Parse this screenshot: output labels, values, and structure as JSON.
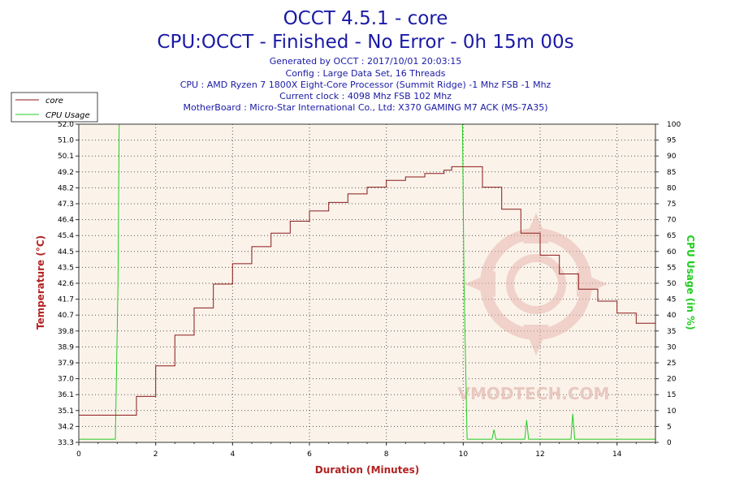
{
  "header": {
    "title1": "OCCT 4.5.1 - core",
    "title2": "CPU:OCCT - Finished - No Error - 0h 15m 00s",
    "info": [
      "Generated by OCCT : 2017/10/01 20:03:15",
      "Config : Large Data Set, 16 Threads",
      "CPU : AMD Ryzen 7 1800X Eight-Core Processor (Summit Ridge) -1 Mhz FSB -1 Mhz",
      "Current clock : 4098 Mhz FSB 102 Mhz",
      "MotherBoard : Micro-Star International Co., Ltd: X370 GAMING M7 ACK (MS-7A35)"
    ]
  },
  "watermark": "VMODTECH.COM",
  "colors": {
    "core": "#8b1a1a",
    "cpu_usage": "#22cc22",
    "plot_bg": "#fbf3ea",
    "title": "#1a1aa6"
  },
  "chart_data": {
    "type": "line",
    "xlabel": "Duration (Minutes)",
    "ylabel": "Temperature (°C)",
    "y2label": "CPU Usage (in %)",
    "xlim": [
      0,
      15
    ],
    "ylim": [
      33.3,
      52.0
    ],
    "y2lim": [
      0,
      100
    ],
    "x_ticks": [
      "0",
      "2",
      "4",
      "6",
      "8",
      "10",
      "12",
      "14"
    ],
    "y_ticks": [
      "33.3",
      "34.2",
      "35.1",
      "36.1",
      "37.0",
      "37.9",
      "38.9",
      "39.8",
      "40.7",
      "41.7",
      "42.6",
      "43.5",
      "44.5",
      "45.4",
      "46.4",
      "47.3",
      "48.2",
      "49.2",
      "50.1",
      "51.0",
      "52.0"
    ],
    "y2_ticks": [
      "0",
      "5",
      "10",
      "15",
      "20",
      "25",
      "30",
      "35",
      "40",
      "45",
      "50",
      "55",
      "60",
      "65",
      "70",
      "75",
      "80",
      "85",
      "90",
      "95",
      "100"
    ],
    "grid": true,
    "legend_position": "top-left",
    "series": [
      {
        "name": "core",
        "axis": "left",
        "x": [
          0,
          1.2,
          1.5,
          2.0,
          2.5,
          3.0,
          3.5,
          4.0,
          4.5,
          5.0,
          5.5,
          6.0,
          6.5,
          7.0,
          7.5,
          8.0,
          8.5,
          9.0,
          9.5,
          9.7,
          10.0,
          10.5,
          11.0,
          11.5,
          12.0,
          12.5,
          13.0,
          13.5,
          14.0,
          14.5,
          15.0
        ],
        "y": [
          34.9,
          34.9,
          36.0,
          37.8,
          39.6,
          41.2,
          42.6,
          43.8,
          44.8,
          45.6,
          46.3,
          46.9,
          47.4,
          47.9,
          48.3,
          48.7,
          48.9,
          49.1,
          49.3,
          49.5,
          49.5,
          48.3,
          47.0,
          45.6,
          44.3,
          43.2,
          42.3,
          41.6,
          40.9,
          40.3,
          39.8
        ]
      },
      {
        "name": "CPU Usage",
        "axis": "right",
        "x": [
          0,
          0.95,
          1.02,
          1.05,
          9.98,
          10.02,
          10.1,
          10.75,
          10.8,
          10.85,
          11.6,
          11.65,
          11.7,
          12.8,
          12.85,
          12.9,
          15.0
        ],
        "y": [
          1,
          1,
          50,
          100,
          100,
          50,
          1,
          1,
          4,
          1,
          1,
          7,
          1,
          1,
          9,
          1,
          1
        ]
      }
    ]
  }
}
